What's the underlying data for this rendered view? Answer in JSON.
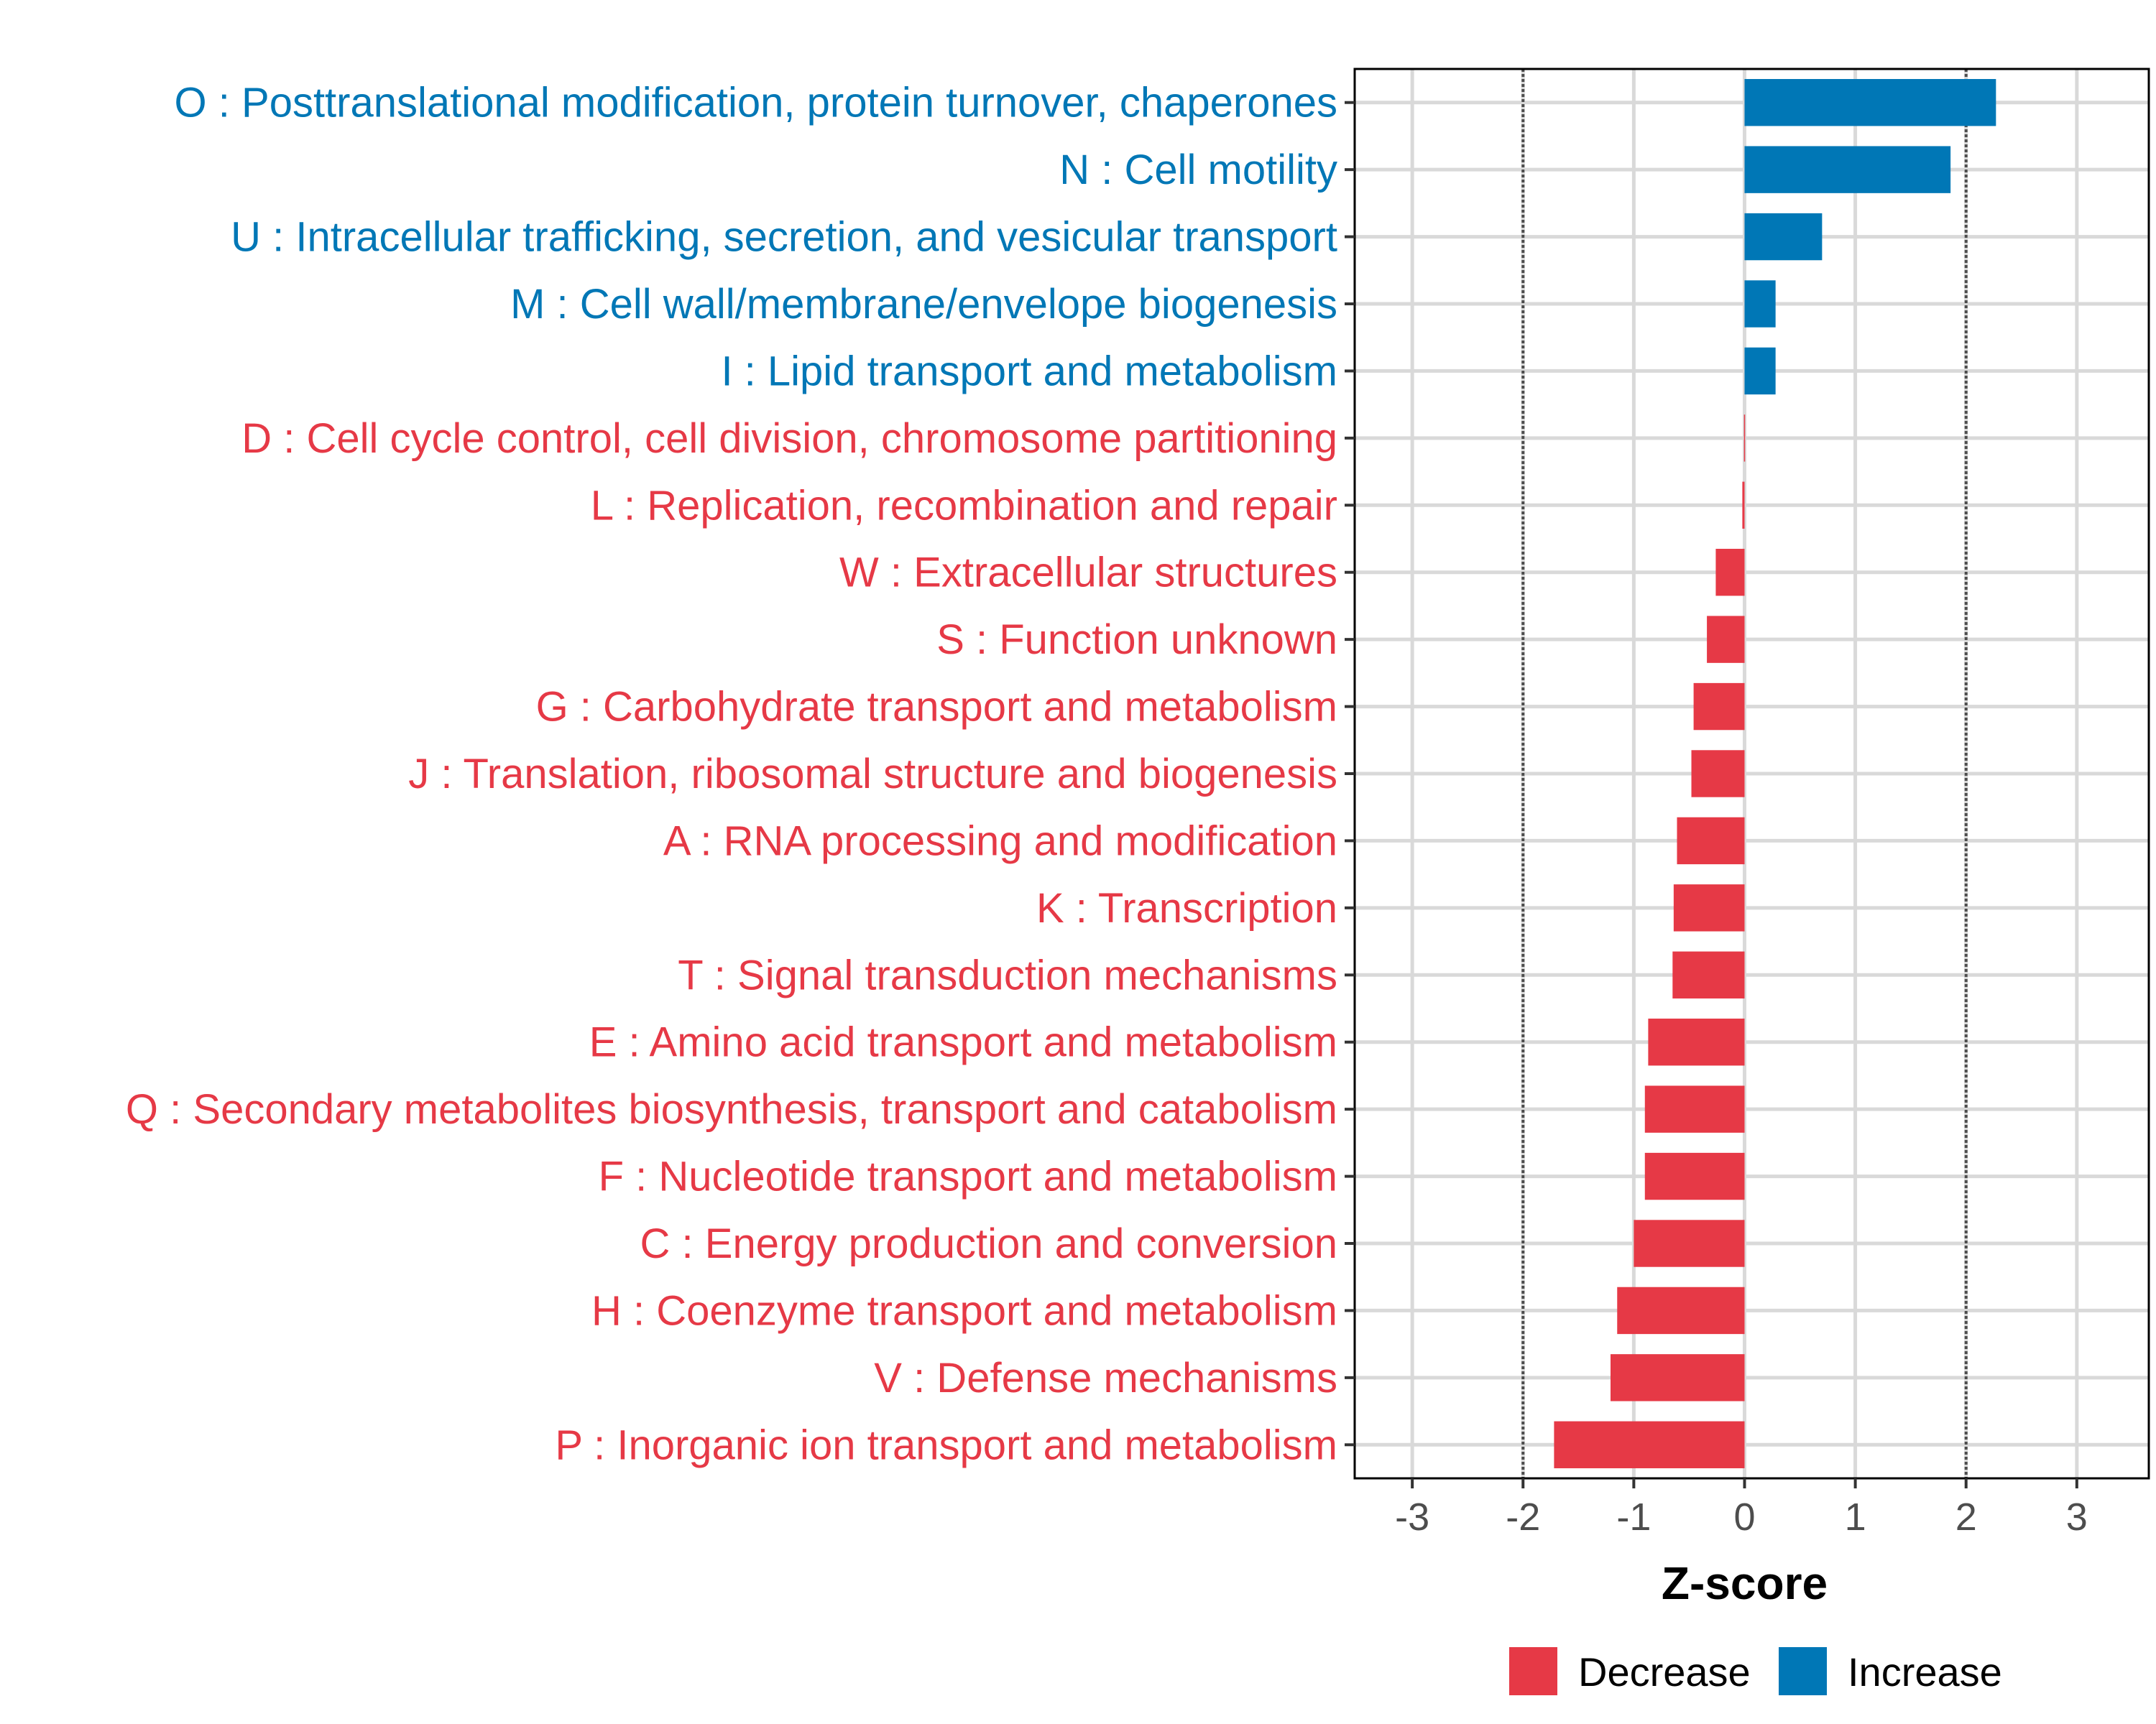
{
  "chart_data": {
    "type": "bar",
    "orientation": "horizontal",
    "title": "",
    "xlabel": "Z-score",
    "ylabel": "",
    "xlim": [
      -3.52,
      3.65
    ],
    "xticks": [
      -3,
      -2,
      -1,
      0,
      1,
      2,
      3
    ],
    "xtick_labels": [
      "-3",
      "-2",
      "-1",
      "0",
      "1",
      "2",
      "3"
    ],
    "threshold_lines": [
      -2,
      2
    ],
    "grid": true,
    "legend_position": "bottom",
    "legend": [
      {
        "label": "Decrease",
        "color": "#E63946"
      },
      {
        "label": "Increase",
        "color": "#0077B6"
      }
    ],
    "categories": [
      "O : Posttranslational modification, protein turnover, chaperones",
      "N : Cell motility",
      "U : Intracellular trafficking, secretion, and vesicular transport",
      "M : Cell wall/membrane/envelope biogenesis",
      "I : Lipid transport and metabolism",
      "D : Cell cycle control, cell division, chromosome partitioning",
      "L : Replication, recombination and repair",
      "W : Extracellular structures",
      "S : Function unknown",
      "G : Carbohydrate transport and metabolism",
      "J : Translation, ribosomal structure and biogenesis",
      "A : RNA processing and modification",
      "K : Transcription",
      "T : Signal transduction mechanisms",
      "E : Amino acid transport and metabolism",
      "Q : Secondary metabolites biosynthesis, transport and catabolism",
      "F : Nucleotide transport and metabolism",
      "C : Energy production and conversion",
      "H : Coenzyme transport and metabolism",
      "V : Defense mechanisms",
      "P : Inorganic ion transport and metabolism"
    ],
    "values": [
      2.27,
      1.86,
      0.7,
      0.28,
      0.28,
      -0.005,
      -0.02,
      -0.26,
      -0.34,
      -0.46,
      -0.48,
      -0.61,
      -0.64,
      -0.65,
      -0.87,
      -0.9,
      -0.9,
      -1.0,
      -1.15,
      -1.21,
      -1.72
    ],
    "groups": [
      "Increase",
      "Increase",
      "Increase",
      "Increase",
      "Increase",
      "Decrease",
      "Decrease",
      "Decrease",
      "Decrease",
      "Decrease",
      "Decrease",
      "Decrease",
      "Decrease",
      "Decrease",
      "Decrease",
      "Decrease",
      "Decrease",
      "Decrease",
      "Decrease",
      "Decrease",
      "Decrease"
    ]
  }
}
